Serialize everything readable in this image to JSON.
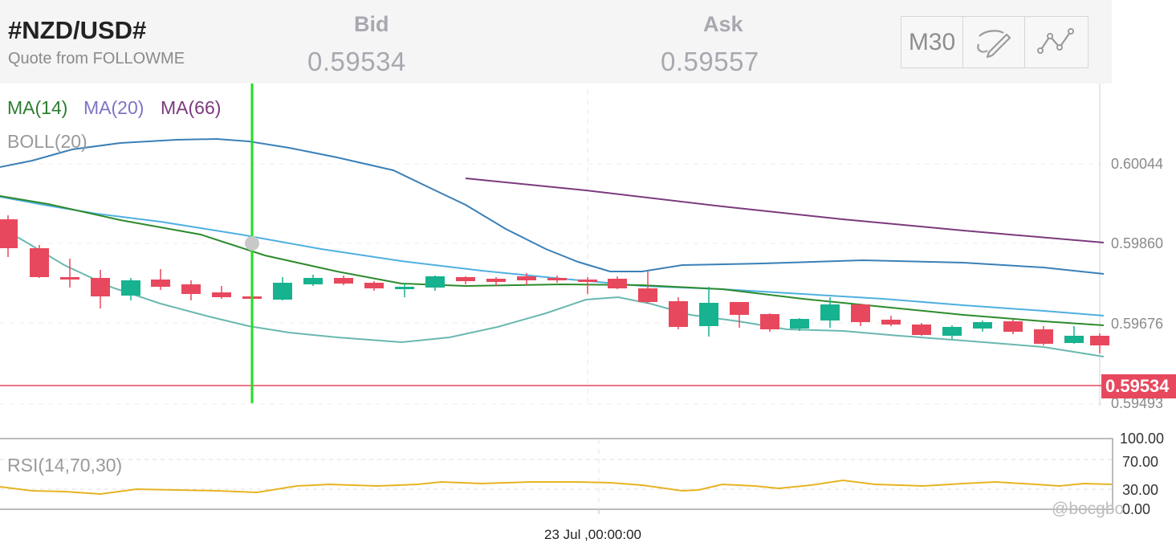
{
  "header": {
    "symbol": "#NZD/USD#",
    "quote_source": "Quote from FOLLOWME",
    "bid_label": "Bid",
    "bid_value": "0.59534",
    "ask_label": "Ask",
    "ask_value": "0.59557"
  },
  "toolbar": {
    "timeframe": "M30",
    "draw_icon": "pencil-draw-icon",
    "indicator_icon": "line-chart-icon"
  },
  "main_chart": {
    "legend": {
      "ma14": "MA(14)",
      "ma20": "MA(20)",
      "ma66": "MA(66)",
      "boll": "BOLL(20)"
    },
    "price_labels": [
      "0.60044",
      "0.59860",
      "0.59676",
      "0.59493"
    ],
    "current_price": "0.59534",
    "colors": {
      "bull": "#17b28f",
      "bear": "#e8485d",
      "ma14": "#2e8b2e",
      "ma20": "#4fb0e0",
      "ma66": "#7b3a7e",
      "boll_upper": "#3a80b8",
      "boll_lower": "#6ab8b0",
      "crosshair": "#22dd22",
      "price_line": "#e8485d"
    }
  },
  "rsi_panel": {
    "label": "RSI(14,70,30)",
    "levels": [
      "100.00",
      "70.00",
      "30.00",
      "0.00"
    ],
    "line_color": "#e6b422"
  },
  "x_axis": {
    "time_label": "23 Jul ,00:00:00"
  },
  "watermark": "@bocgbo"
}
